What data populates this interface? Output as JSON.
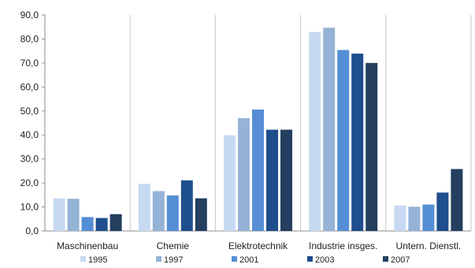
{
  "chart_data": {
    "type": "bar",
    "categories": [
      "Maschinenbau",
      "Chemie",
      "Elektrotechnik",
      "Industrie insges.",
      "Untern. Dienstl."
    ],
    "series": [
      {
        "name": "1995",
        "color": "#c6d9f1",
        "values": [
          13.6,
          19.6,
          39.9,
          82.9,
          10.6
        ]
      },
      {
        "name": "1997",
        "color": "#95b3d7",
        "values": [
          13.4,
          16.6,
          47.0,
          84.7,
          10.1
        ]
      },
      {
        "name": "2001",
        "color": "#558ed5",
        "values": [
          5.8,
          14.8,
          50.6,
          75.4,
          11.0
        ]
      },
      {
        "name": "2003",
        "color": "#1f4e8c",
        "values": [
          5.4,
          21.1,
          42.2,
          73.9,
          16.0
        ]
      },
      {
        "name": "2007",
        "color": "#243f60",
        "values": [
          7.0,
          13.6,
          42.2,
          70.0,
          25.8
        ]
      }
    ],
    "yticks": [
      "0,0",
      "10,0",
      "20,0",
      "30,0",
      "40,0",
      "50,0",
      "60,0",
      "70,0",
      "80,0",
      "90,0"
    ],
    "ylim": [
      0,
      90
    ],
    "grid": "vertical category separators",
    "legend_position": "bottom"
  }
}
